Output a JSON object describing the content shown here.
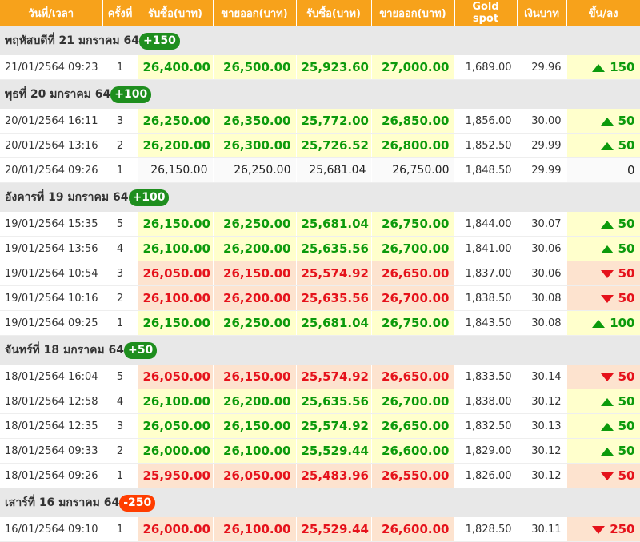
{
  "headers": [
    "วันที่/เวลา",
    "ครั้งที่",
    "รับซื้อ(บาท)",
    "ขายออก(บาท)",
    "รับซื้อ(บาท)",
    "ขายออก(บาท)",
    "Gold spot",
    "เงินบาท",
    "ขึ้น/ลง"
  ],
  "colors": {
    "header": "#f7a21b",
    "up": "#0c9a0c",
    "down": "#e5121b",
    "up_bg": "#ffffcc",
    "down_bg": "#fde3cf"
  },
  "groups": [
    {
      "label": "พฤหัสบดีที่ 21 มกราคม 64",
      "change": "+150",
      "dir": "up",
      "rows": [
        {
          "datetime": "21/01/2564 09:23",
          "count": "1",
          "bar_buy": "26,400.00",
          "bar_sell": "26,500.00",
          "orn_buy": "25,923.60",
          "orn_sell": "27,000.00",
          "spot": "1,689.00",
          "thb": "29.96",
          "change": "150",
          "dir": "up"
        }
      ]
    },
    {
      "label": "พุธที่ 20 มกราคม 64",
      "change": "+100",
      "dir": "up",
      "rows": [
        {
          "datetime": "20/01/2564 16:11",
          "count": "3",
          "bar_buy": "26,250.00",
          "bar_sell": "26,350.00",
          "orn_buy": "25,772.00",
          "orn_sell": "26,850.00",
          "spot": "1,856.00",
          "thb": "30.00",
          "change": "50",
          "dir": "up"
        },
        {
          "datetime": "20/01/2564 13:16",
          "count": "2",
          "bar_buy": "26,200.00",
          "bar_sell": "26,300.00",
          "orn_buy": "25,726.52",
          "orn_sell": "26,800.00",
          "spot": "1,852.50",
          "thb": "29.99",
          "change": "50",
          "dir": "up"
        },
        {
          "datetime": "20/01/2564 09:26",
          "count": "1",
          "bar_buy": "26,150.00",
          "bar_sell": "26,250.00",
          "orn_buy": "25,681.04",
          "orn_sell": "26,750.00",
          "spot": "1,848.50",
          "thb": "29.99",
          "change": "0",
          "dir": "flat"
        }
      ]
    },
    {
      "label": "อังคารที่ 19 มกราคม 64",
      "change": "+100",
      "dir": "up",
      "rows": [
        {
          "datetime": "19/01/2564 15:35",
          "count": "5",
          "bar_buy": "26,150.00",
          "bar_sell": "26,250.00",
          "orn_buy": "25,681.04",
          "orn_sell": "26,750.00",
          "spot": "1,844.00",
          "thb": "30.07",
          "change": "50",
          "dir": "up"
        },
        {
          "datetime": "19/01/2564 13:56",
          "count": "4",
          "bar_buy": "26,100.00",
          "bar_sell": "26,200.00",
          "orn_buy": "25,635.56",
          "orn_sell": "26,700.00",
          "spot": "1,841.00",
          "thb": "30.06",
          "change": "50",
          "dir": "up"
        },
        {
          "datetime": "19/01/2564 10:54",
          "count": "3",
          "bar_buy": "26,050.00",
          "bar_sell": "26,150.00",
          "orn_buy": "25,574.92",
          "orn_sell": "26,650.00",
          "spot": "1,837.00",
          "thb": "30.06",
          "change": "50",
          "dir": "down"
        },
        {
          "datetime": "19/01/2564 10:16",
          "count": "2",
          "bar_buy": "26,100.00",
          "bar_sell": "26,200.00",
          "orn_buy": "25,635.56",
          "orn_sell": "26,700.00",
          "spot": "1,838.50",
          "thb": "30.08",
          "change": "50",
          "dir": "down"
        },
        {
          "datetime": "19/01/2564 09:25",
          "count": "1",
          "bar_buy": "26,150.00",
          "bar_sell": "26,250.00",
          "orn_buy": "25,681.04",
          "orn_sell": "26,750.00",
          "spot": "1,843.50",
          "thb": "30.08",
          "change": "100",
          "dir": "up"
        }
      ]
    },
    {
      "label": "จันทร์ที่ 18 มกราคม 64",
      "change": "+50",
      "dir": "up",
      "rows": [
        {
          "datetime": "18/01/2564 16:04",
          "count": "5",
          "bar_buy": "26,050.00",
          "bar_sell": "26,150.00",
          "orn_buy": "25,574.92",
          "orn_sell": "26,650.00",
          "spot": "1,833.50",
          "thb": "30.14",
          "change": "50",
          "dir": "down"
        },
        {
          "datetime": "18/01/2564 12:58",
          "count": "4",
          "bar_buy": "26,100.00",
          "bar_sell": "26,200.00",
          "orn_buy": "25,635.56",
          "orn_sell": "26,700.00",
          "spot": "1,838.00",
          "thb": "30.12",
          "change": "50",
          "dir": "up"
        },
        {
          "datetime": "18/01/2564 12:35",
          "count": "3",
          "bar_buy": "26,050.00",
          "bar_sell": "26,150.00",
          "orn_buy": "25,574.92",
          "orn_sell": "26,650.00",
          "spot": "1,832.50",
          "thb": "30.13",
          "change": "50",
          "dir": "up"
        },
        {
          "datetime": "18/01/2564 09:33",
          "count": "2",
          "bar_buy": "26,000.00",
          "bar_sell": "26,100.00",
          "orn_buy": "25,529.44",
          "orn_sell": "26,600.00",
          "spot": "1,829.00",
          "thb": "30.12",
          "change": "50",
          "dir": "up"
        },
        {
          "datetime": "18/01/2564 09:26",
          "count": "1",
          "bar_buy": "25,950.00",
          "bar_sell": "26,050.00",
          "orn_buy": "25,483.96",
          "orn_sell": "26,550.00",
          "spot": "1,826.00",
          "thb": "30.12",
          "change": "50",
          "dir": "down"
        }
      ]
    },
    {
      "label": "เสาร์ที่ 16 มกราคม 64",
      "change": "-250",
      "dir": "down",
      "rows": [
        {
          "datetime": "16/01/2564 09:10",
          "count": "1",
          "bar_buy": "26,000.00",
          "bar_sell": "26,100.00",
          "orn_buy": "25,529.44",
          "orn_sell": "26,600.00",
          "spot": "1,828.50",
          "thb": "30.11",
          "change": "250",
          "dir": "down"
        }
      ]
    }
  ]
}
